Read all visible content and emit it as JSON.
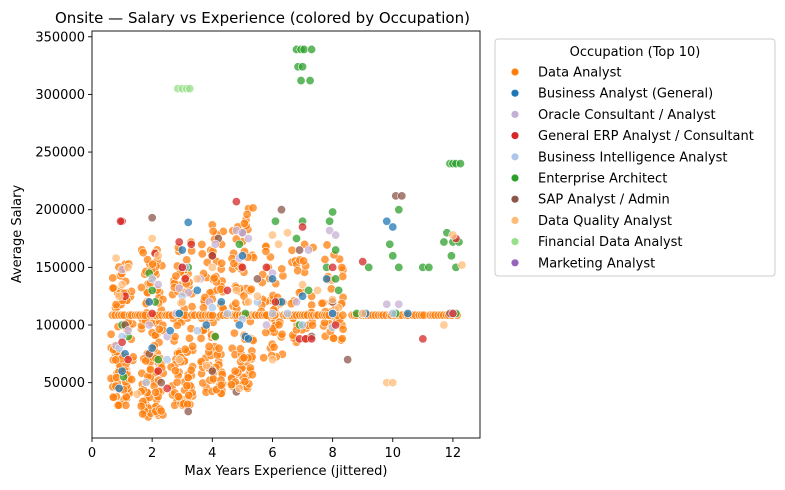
{
  "chart_data": {
    "type": "scatter",
    "title": "Onsite — Salary vs Experience (colored by Occupation)",
    "xlabel": "Max Years Experience (jittered)",
    "ylabel": "Average Salary",
    "xlim": [
      0,
      12.9
    ],
    "ylim": [
      2000,
      355000
    ],
    "x_ticks": [
      0,
      2,
      4,
      6,
      8,
      10,
      12
    ],
    "x_tick_labels": [
      "0",
      "2",
      "4",
      "6",
      "8",
      "10",
      "12"
    ],
    "y_ticks": [
      50000,
      100000,
      150000,
      200000,
      250000,
      300000,
      350000
    ],
    "y_tick_labels": [
      "50000",
      "100000",
      "150000",
      "200000",
      "250000",
      "300000",
      "350000"
    ],
    "grid": false,
    "legend": {
      "title": "Occupation (Top 10)",
      "position": "outside-right",
      "entries": [
        {
          "name": "Data Analyst",
          "color": "#ff7f0e"
        },
        {
          "name": "Business Analyst (General)",
          "color": "#1f77b4"
        },
        {
          "name": "Oracle Consultant / Analyst",
          "color": "#c5b0d5"
        },
        {
          "name": "General ERP Analyst / Consultant",
          "color": "#d62728"
        },
        {
          "name": "Business Intelligence Analyst",
          "color": "#aec7e8"
        },
        {
          "name": "Enterprise Architect",
          "color": "#2ca02c"
        },
        {
          "name": "SAP Analyst / Admin",
          "color": "#8c564b"
        },
        {
          "name": "Data Quality Analyst",
          "color": "#ffbb78"
        },
        {
          "name": "Financial Data Analyst",
          "color": "#98df8a"
        },
        {
          "name": "Marketing Analyst",
          "color": "#9467bd"
        }
      ]
    },
    "series": [
      {
        "name": "Financial Data Analyst",
        "color": "#98df8a",
        "points": [
          [
            2.85,
            305000
          ],
          [
            3.0,
            305000
          ],
          [
            3.15,
            305000
          ],
          [
            3.25,
            305000
          ]
        ]
      },
      {
        "name": "Enterprise Architect",
        "color": "#2ca02c",
        "points": [
          [
            6.8,
            339000
          ],
          [
            6.95,
            339000
          ],
          [
            7.05,
            339000
          ],
          [
            7.3,
            339000
          ],
          [
            6.85,
            324000
          ],
          [
            7.0,
            324000
          ],
          [
            6.95,
            312000
          ],
          [
            7.25,
            312000
          ],
          [
            11.9,
            240000
          ],
          [
            12.0,
            240000
          ],
          [
            12.1,
            240000
          ],
          [
            12.25,
            240000
          ],
          [
            11.8,
            180000
          ],
          [
            12.0,
            172000
          ],
          [
            12.2,
            172000
          ],
          [
            11.7,
            172000
          ],
          [
            11.95,
            160000
          ],
          [
            12.1,
            150000
          ],
          [
            10.2,
            200000
          ],
          [
            9.9,
            170000
          ],
          [
            10.0,
            160000
          ],
          [
            10.2,
            150000
          ],
          [
            11.0,
            150000
          ],
          [
            11.2,
            150000
          ],
          [
            9.2,
            150000
          ],
          [
            8.0,
            198000
          ],
          [
            7.9,
            190000
          ],
          [
            7.0,
            190000
          ],
          [
            6.8,
            175000
          ],
          [
            6.1,
            190000
          ],
          [
            8.1,
            165000
          ],
          [
            7.8,
            150000
          ],
          [
            8.1,
            140000
          ],
          [
            4.9,
            170000
          ],
          [
            4.0,
            160000
          ],
          [
            3.2,
            150000
          ],
          [
            2.0,
            130000
          ],
          [
            1.9,
            145000
          ],
          [
            2.1,
            120000
          ],
          [
            1.0,
            100000
          ],
          [
            1.2,
            90000
          ],
          [
            2.9,
            110000
          ],
          [
            5.1,
            110000
          ],
          [
            6.2,
            120000
          ],
          [
            7.2,
            130000
          ],
          [
            8.8,
            110000
          ],
          [
            12.1,
            110000
          ],
          [
            10.1,
            110000
          ],
          [
            1.05,
            55000
          ],
          [
            2.2,
            70000
          ],
          [
            4.1,
            90000
          ],
          [
            6.9,
            100000
          ],
          [
            8.2,
            130000
          ]
        ]
      },
      {
        "name": "SAP Analyst / Admin",
        "color": "#8c564b",
        "points": [
          [
            10.1,
            212000
          ],
          [
            10.3,
            212000
          ],
          [
            8.5,
            70000
          ],
          [
            6.3,
            200000
          ],
          [
            2.0,
            193000
          ],
          [
            4.2,
            175000
          ],
          [
            5.0,
            180000
          ],
          [
            3.2,
            25000
          ],
          [
            2.3,
            50000
          ],
          [
            1.1,
            100000
          ],
          [
            4.8,
            42000
          ],
          [
            6.9,
            165000
          ],
          [
            8.0,
            120000
          ],
          [
            11.9,
            110000
          ],
          [
            3.0,
            150000
          ],
          [
            5.5,
            140000
          ],
          [
            7.3,
            90000
          ],
          [
            1.9,
            75000
          ],
          [
            4.0,
            60000
          ]
        ]
      },
      {
        "name": "Oracle Consultant / Analyst",
        "color": "#c5b0d5",
        "points": [
          [
            1.0,
            148000
          ],
          [
            2.2,
            135000
          ],
          [
            2.9,
            132000
          ],
          [
            3.2,
            128000
          ],
          [
            4.8,
            182000
          ],
          [
            5.0,
            180000
          ],
          [
            5.2,
            175000
          ],
          [
            4.9,
            158000
          ],
          [
            6.0,
            145000
          ],
          [
            7.2,
            165000
          ],
          [
            7.9,
            182000
          ],
          [
            8.1,
            178000
          ],
          [
            9.8,
            118000
          ],
          [
            10.2,
            118000
          ],
          [
            3.9,
            120000
          ],
          [
            2.8,
            110000
          ],
          [
            1.9,
            100000
          ],
          [
            1.2,
            95000
          ],
          [
            0.8,
            82000
          ],
          [
            3.1,
            150000
          ],
          [
            4.1,
            170000
          ],
          [
            6.8,
            120000
          ],
          [
            8.0,
            110000
          ],
          [
            5.8,
            100000
          ],
          [
            2.5,
            90000
          ],
          [
            3.6,
            140000
          ]
        ]
      },
      {
        "name": "Business Intelligence Analyst",
        "color": "#aec7e8",
        "points": [
          [
            2.0,
            140000
          ],
          [
            3.0,
            125000
          ],
          [
            4.0,
            115000
          ],
          [
            5.0,
            105000
          ],
          [
            6.0,
            110000
          ],
          [
            7.0,
            100000
          ],
          [
            8.0,
            98000
          ],
          [
            1.0,
            90000
          ],
          [
            0.9,
            80000
          ],
          [
            2.5,
            70000
          ],
          [
            3.5,
            95000
          ],
          [
            4.5,
            110000
          ],
          [
            5.5,
            120000
          ],
          [
            6.5,
            110000
          ],
          [
            9.0,
            110000
          ],
          [
            10.0,
            110000
          ],
          [
            12.0,
            110000
          ],
          [
            1.8,
            50000
          ]
        ]
      },
      {
        "name": "Business Analyst (General)",
        "color": "#1f77b4",
        "points": [
          [
            3.2,
            189000
          ],
          [
            9.8,
            190000
          ],
          [
            10.0,
            185000
          ],
          [
            5.0,
            160000
          ],
          [
            3.0,
            165000
          ],
          [
            2.0,
            80000
          ],
          [
            1.0,
            60000
          ],
          [
            4.9,
            100000
          ],
          [
            5.1,
            90000
          ],
          [
            6.0,
            140000
          ],
          [
            6.3,
            120000
          ],
          [
            7.0,
            125000
          ],
          [
            2.9,
            110000
          ],
          [
            3.8,
            100000
          ],
          [
            1.1,
            75000
          ],
          [
            0.9,
            45000
          ],
          [
            5.2,
            88000
          ],
          [
            8.0,
            110000
          ],
          [
            9.1,
            110000
          ],
          [
            2.6,
            95000
          ],
          [
            4.3,
            120000
          ],
          [
            1.9,
            120000
          ],
          [
            7.8,
            140000
          ],
          [
            3.5,
            130000
          ],
          [
            10.5,
            110000
          ]
        ]
      },
      {
        "name": "General ERP Analyst / Consultant",
        "color": "#d62728",
        "points": [
          [
            1.0,
            190000
          ],
          [
            0.95,
            190000
          ],
          [
            4.8,
            207000
          ],
          [
            7.0,
            185000
          ],
          [
            6.9,
            88000
          ],
          [
            7.1,
            88000
          ],
          [
            7.3,
            88000
          ],
          [
            11.0,
            88000
          ],
          [
            12.1,
            175000
          ],
          [
            12.0,
            110000
          ],
          [
            2.1,
            162000
          ],
          [
            2.9,
            172000
          ],
          [
            3.3,
            170000
          ],
          [
            4.0,
            160000
          ],
          [
            5.0,
            150000
          ],
          [
            3.1,
            140000
          ],
          [
            2.0,
            110000
          ],
          [
            1.0,
            85000
          ],
          [
            1.2,
            70000
          ],
          [
            2.2,
            60000
          ],
          [
            3.0,
            150000
          ],
          [
            4.5,
            130000
          ],
          [
            5.8,
            150000
          ],
          [
            6.1,
            120000
          ],
          [
            8.0,
            150000
          ],
          [
            9.0,
            155000
          ],
          [
            8.1,
            100000
          ],
          [
            1.1,
            125000
          ],
          [
            2.5,
            45000
          ]
        ]
      },
      {
        "name": "Data Quality Analyst",
        "color": "#ffbb78",
        "points": [
          [
            0.8,
            158000
          ],
          [
            0.9,
            125000
          ],
          [
            1.0,
            135000
          ],
          [
            1.2,
            150000
          ],
          [
            2.0,
            175000
          ],
          [
            2.2,
            160000
          ],
          [
            3.0,
            120000
          ],
          [
            3.5,
            140000
          ],
          [
            4.0,
            150000
          ],
          [
            4.8,
            130000
          ],
          [
            5.2,
            120000
          ],
          [
            5.5,
            125000
          ],
          [
            6.0,
            178000
          ],
          [
            6.2,
            170000
          ],
          [
            6.5,
            180000
          ],
          [
            7.0,
            135000
          ],
          [
            7.5,
            130000
          ],
          [
            8.0,
            122000
          ],
          [
            8.2,
            115000
          ],
          [
            9.0,
            110000
          ],
          [
            11.7,
            100000
          ],
          [
            12.0,
            178000
          ],
          [
            12.3,
            152000
          ],
          [
            9.8,
            50000
          ],
          [
            10.0,
            50000
          ],
          [
            2.9,
            70000
          ],
          [
            3.8,
            65000
          ],
          [
            1.5,
            40000
          ],
          [
            6.0,
            70000
          ],
          [
            4.9,
            45000
          ]
        ]
      },
      {
        "name": "Data Analyst",
        "color": "#ff7f0e",
        "points": []
      }
    ],
    "dense_cloud_note": ""
  }
}
